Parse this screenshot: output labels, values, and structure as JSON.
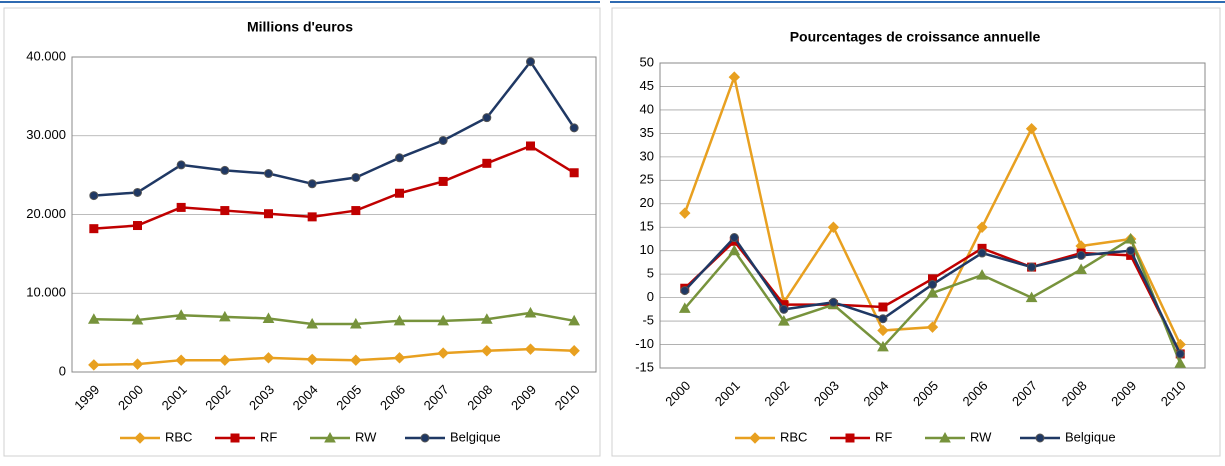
{
  "chart_data": [
    {
      "type": "line",
      "title": "Millions d'euros",
      "categories": [
        "1999",
        "2000",
        "2001",
        "2002",
        "2003",
        "2004",
        "2005",
        "2006",
        "2007",
        "2008",
        "2009",
        "2010"
      ],
      "ylim": [
        0,
        40000
      ],
      "yticks": [
        0,
        {
          "value": 10000,
          "label": "10.000"
        },
        {
          "value": 20000,
          "label": "20.000"
        },
        {
          "value": 30000,
          "label": "30.000"
        },
        {
          "value": 40000,
          "label": "40.000"
        }
      ],
      "grid": true,
      "legend": "bottom",
      "series": [
        {
          "name": "RBC",
          "color": "#e8a020",
          "marker": "diamond",
          "values": [
            900,
            1000,
            1500,
            1500,
            1800,
            1600,
            1500,
            1800,
            2400,
            2700,
            2900,
            2700
          ]
        },
        {
          "name": "RF",
          "color": "#c00000",
          "marker": "square",
          "values": [
            18200,
            18600,
            20900,
            20500,
            20100,
            19700,
            20500,
            22700,
            24200,
            26500,
            28700,
            25300
          ]
        },
        {
          "name": "RW",
          "color": "#77933c",
          "marker": "triangle",
          "values": [
            6700,
            6600,
            7200,
            7000,
            6800,
            6100,
            6100,
            6500,
            6500,
            6700,
            7500,
            6500
          ]
        },
        {
          "name": "Belgique",
          "color": "#1f3864",
          "marker": "circle",
          "values": [
            22400,
            22800,
            26300,
            25600,
            25200,
            23900,
            24700,
            27200,
            29400,
            32300,
            39400,
            31000
          ]
        }
      ]
    },
    {
      "type": "line",
      "title": "Pourcentages de croissance annuelle",
      "categories": [
        "2000",
        "2001",
        "2002",
        "2003",
        "2004",
        "2005",
        "2006",
        "2007",
        "2008",
        "2009",
        "2010"
      ],
      "ylim": [
        -15,
        50
      ],
      "yticks": [
        -15,
        -10,
        -5,
        0,
        5,
        10,
        15,
        20,
        25,
        30,
        35,
        40,
        45,
        50
      ],
      "grid": true,
      "legend": "bottom",
      "series": [
        {
          "name": "RBC",
          "color": "#e8a020",
          "marker": "diamond",
          "values": [
            18,
            47,
            -1,
            15,
            -7,
            -6.3,
            15,
            36,
            11,
            12.5,
            -10
          ]
        },
        {
          "name": "RF",
          "color": "#c00000",
          "marker": "square",
          "values": [
            2,
            12,
            -1.5,
            -1.5,
            -2,
            4,
            10.5,
            6.5,
            9.5,
            9,
            -12
          ]
        },
        {
          "name": "RW",
          "color": "#77933c",
          "marker": "triangle",
          "values": [
            -2.3,
            10,
            -5,
            -1.5,
            -10.5,
            1,
            4.8,
            0,
            6,
            12.5,
            -14
          ]
        },
        {
          "name": "Belgique",
          "color": "#1f3864",
          "marker": "circle",
          "values": [
            1.5,
            12.8,
            -2.5,
            -1,
            -4.5,
            2.8,
            9.5,
            6.5,
            9,
            10,
            -12
          ]
        }
      ]
    }
  ]
}
